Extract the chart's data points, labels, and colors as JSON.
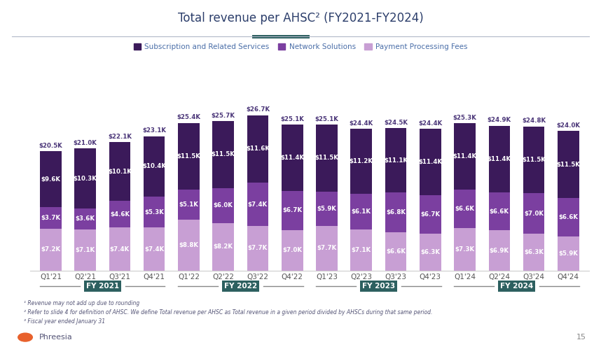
{
  "title": "Total revenue per AHSC² (FY2021-FY2024)",
  "categories": [
    "Q1'21",
    "Q2'21",
    "Q3'21",
    "Q4'21",
    "Q1'22",
    "Q2'22",
    "Q3'22",
    "Q4'22",
    "Q1'23",
    "Q2'23",
    "Q3'23",
    "Q4'23",
    "Q1'24",
    "Q2'24",
    "Q3'24",
    "Q4'24"
  ],
  "subscription": [
    9.6,
    10.3,
    10.1,
    10.4,
    11.5,
    11.5,
    11.6,
    11.4,
    11.5,
    11.2,
    11.1,
    11.4,
    11.4,
    11.4,
    11.5,
    11.5
  ],
  "network": [
    3.7,
    3.6,
    4.6,
    5.3,
    5.1,
    6.0,
    7.4,
    6.7,
    5.9,
    6.1,
    6.8,
    6.7,
    6.6,
    6.6,
    7.0,
    6.6
  ],
  "payment": [
    7.2,
    7.1,
    7.4,
    7.4,
    8.8,
    8.2,
    7.7,
    7.0,
    7.7,
    7.1,
    6.6,
    6.3,
    7.3,
    6.9,
    6.3,
    5.9
  ],
  "totals": [
    20.5,
    21.0,
    22.1,
    23.1,
    25.4,
    25.7,
    26.7,
    25.1,
    25.1,
    24.4,
    24.5,
    24.4,
    25.3,
    24.9,
    24.8,
    24.0
  ],
  "color_subscription": "#3b1a5a",
  "color_network": "#7b3fa0",
  "color_payment": "#c89fd4",
  "color_fy_label_bg": "#2d6060",
  "color_fy_label_text": "#ffffff",
  "color_title": "#2c3e6b",
  "color_bar_label": "#ffffff",
  "color_total_label": "#4a3578",
  "color_legend_text": "#4a6ea8",
  "color_teal_bar": "#2d6060",
  "color_separator_line": "#aaaaaa",
  "legend_labels": [
    "Subscription and Related Services",
    "Network Solutions",
    "Payment Processing Fees"
  ],
  "fy_groups": [
    {
      "label": "FY 2021",
      "start": 0,
      "end": 3
    },
    {
      "label": "FY 2022",
      "start": 4,
      "end": 7
    },
    {
      "label": "FY 2023",
      "start": 8,
      "end": 11
    },
    {
      "label": "FY 2024",
      "start": 12,
      "end": 15
    }
  ],
  "footnotes": [
    "¹ Revenue may not add up due to rounding",
    "² Refer to slide 4 for definition of AHSC. We define Total revenue per AHSC as Total revenue in a given period divided by AHSCs during that same period.",
    "³ Fiscal year ended January 31"
  ],
  "background_color": "#ffffff",
  "ylim": [
    0,
    31
  ]
}
